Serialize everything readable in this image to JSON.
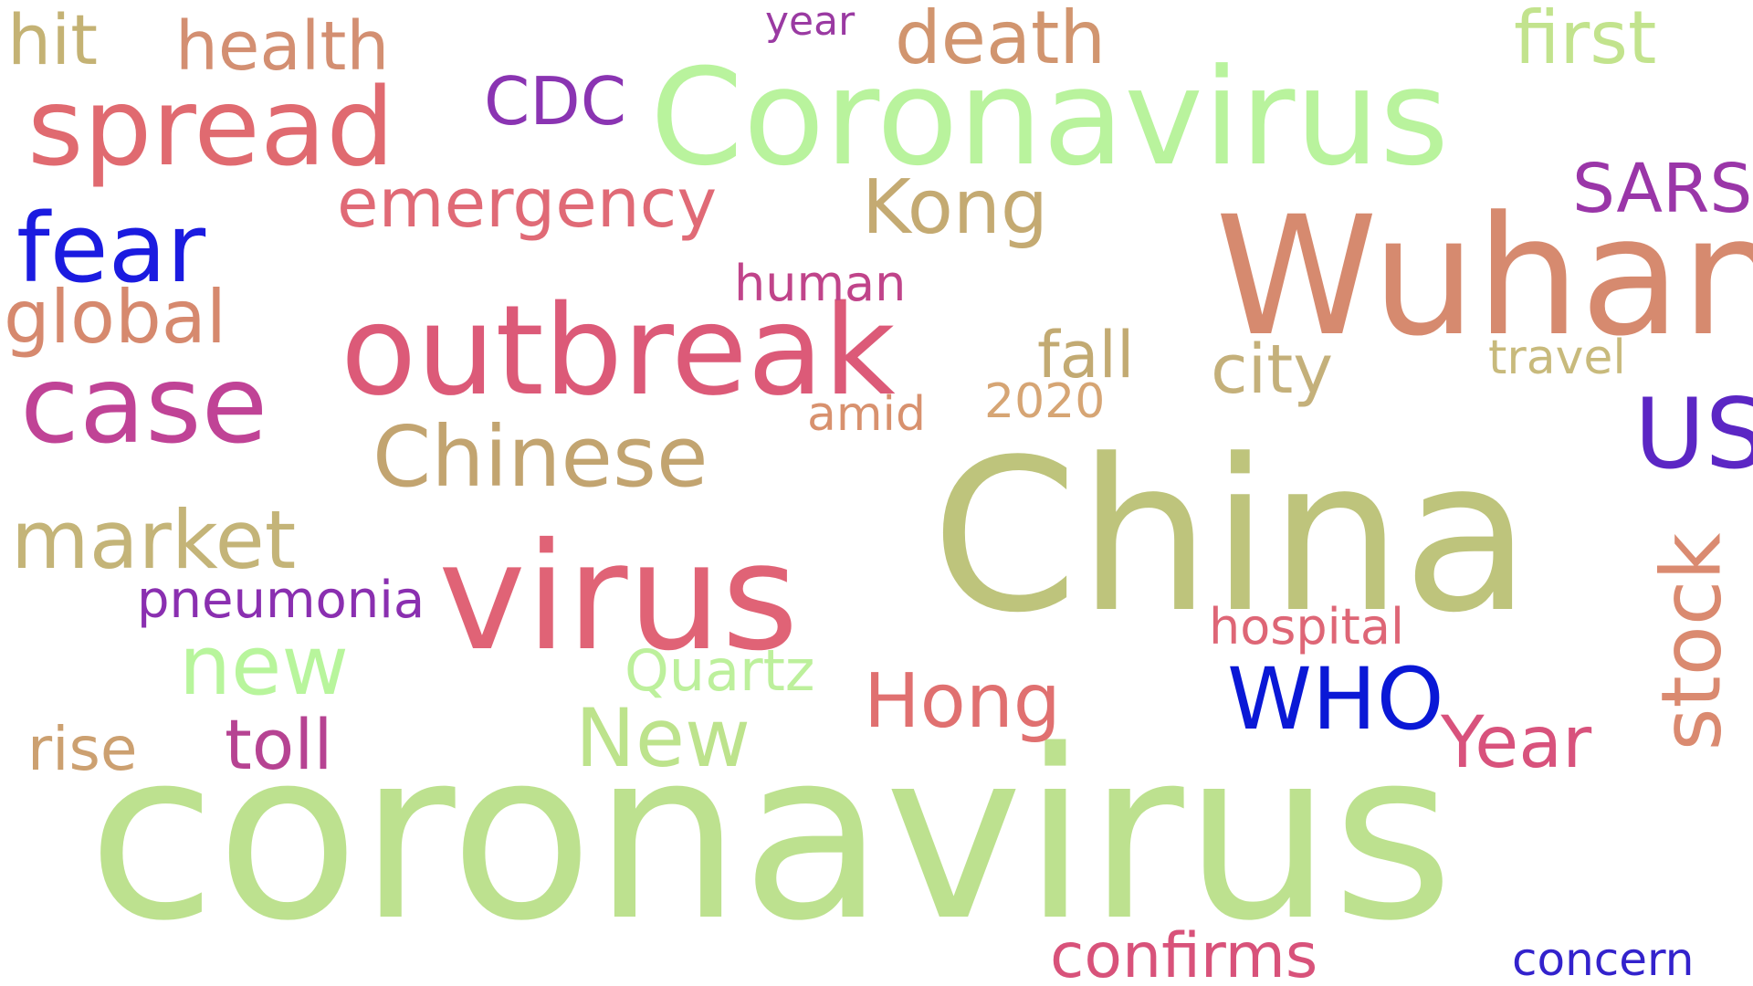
{
  "words": {
    "coronavirus": {
      "text": "coronavirus",
      "color": "#bde18f"
    },
    "china": {
      "text": "China",
      "color": "#bec47c"
    },
    "coronavirus_c": {
      "text": "Coronavirus",
      "color": "#b9f39d"
    },
    "wuhan": {
      "text": "Wuhan",
      "color": "#d68a6f"
    },
    "virus": {
      "text": "virus",
      "color": "#e06376"
    },
    "outbreak": {
      "text": "outbreak",
      "color": "#dc5a78"
    },
    "spread": {
      "text": "spread",
      "color": "#e06a70"
    },
    "case": {
      "text": "case",
      "color": "#c04396"
    },
    "fear": {
      "text": "fear",
      "color": "#1b1be0"
    },
    "chinese": {
      "text": "Chinese",
      "color": "#c2a470"
    },
    "market": {
      "text": "market",
      "color": "#c4b478"
    },
    "new_l": {
      "text": "new",
      "color": "#b8f59c"
    },
    "hong": {
      "text": "Hong",
      "color": "#e07070"
    },
    "kong": {
      "text": "Kong",
      "color": "#c4aa72"
    },
    "emergency": {
      "text": "emergency",
      "color": "#e06a76"
    },
    "health": {
      "text": "health",
      "color": "#d38f72"
    },
    "death": {
      "text": "death",
      "color": "#d1956f"
    },
    "first": {
      "text": "first",
      "color": "#c2e38d"
    },
    "hit": {
      "text": "hit",
      "color": "#c4b274"
    },
    "cdc": {
      "text": "CDC",
      "color": "#8a34b2"
    },
    "global": {
      "text": "global",
      "color": "#d6896e"
    },
    "us": {
      "text": "US",
      "color": "#5b26c4"
    },
    "sars": {
      "text": "SARS",
      "color": "#9a36a8"
    },
    "who": {
      "text": "WHO",
      "color": "#0a18d6"
    },
    "new_c": {
      "text": "New",
      "color": "#bde38c"
    },
    "year_cap": {
      "text": "Year",
      "color": "#d8527c"
    },
    "stock": {
      "text": "stock",
      "color": "#da8a70"
    },
    "confirms": {
      "text": "confirms",
      "color": "#d8527a"
    },
    "toll": {
      "text": "toll",
      "color": "#b64392"
    },
    "rise": {
      "text": "rise",
      "color": "#cca070"
    },
    "fall": {
      "text": "fall",
      "color": "#c2aa72"
    },
    "city": {
      "text": "city",
      "color": "#c4b07a"
    },
    "quartz": {
      "text": "Quartz",
      "color": "#bdf09c"
    },
    "pneumonia": {
      "text": "pneumonia",
      "color": "#8a2fb0"
    },
    "hospital": {
      "text": "hospital",
      "color": "#de6676"
    },
    "human": {
      "text": "human",
      "color": "#c0448a"
    },
    "amid": {
      "text": "amid",
      "color": "#d8916e"
    },
    "n2020": {
      "text": "2020",
      "color": "#d6a574"
    },
    "travel": {
      "text": "travel",
      "color": "#c8ba7c"
    },
    "year_low": {
      "text": "year",
      "color": "#9a3aa2"
    },
    "concern": {
      "text": "concern",
      "color": "#3322cc"
    }
  }
}
